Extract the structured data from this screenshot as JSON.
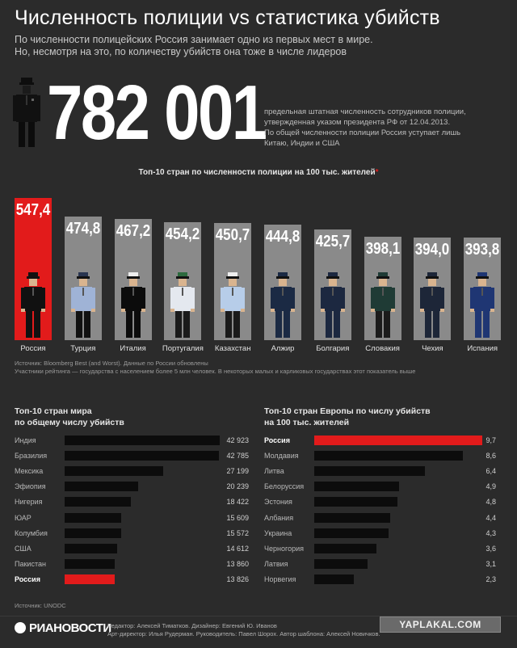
{
  "header": {
    "title": "Численность полиции vs статистика убийств",
    "subtitle_line1": "По численности полицейских Россия занимает одно из первых мест в мире.",
    "subtitle_line2": "Но, несмотря на это, по количеству убийств она тоже в числе лидеров"
  },
  "headline": {
    "number": "782 001",
    "desc_line1": "предельная штатная численность сотрудников полиции,",
    "desc_line2": "утвержденная указом президента РФ от 12.04.2013.",
    "desc_line3": "По общей численности полиции Россия уступает лишь",
    "desc_line4": "Китаю, Индии и США"
  },
  "colors": {
    "highlight": "#e21b1b",
    "bar_gray": "#8a8a8a",
    "bar_dark": "#0c0c0c",
    "background": "#2b2b2b"
  },
  "chart_data": [
    {
      "type": "bar",
      "title": "Топ-10 стран по численности полиции на 100 тыс. жителей",
      "title_mark": "*",
      "categories": [
        "Россия",
        "Турция",
        "Италия",
        "Португалия",
        "Казахстан",
        "Алжир",
        "Болгария",
        "Словакия",
        "Чехия",
        "Испания"
      ],
      "values": [
        547.4,
        474.8,
        467.2,
        454.2,
        450.7,
        444.8,
        425.7,
        398.1,
        394.0,
        393.8
      ],
      "value_labels": [
        "547,4",
        "474,8",
        "467,2",
        "454,2",
        "450,7",
        "444,8",
        "425,7",
        "398,1",
        "394,0",
        "393,8"
      ],
      "highlight": "Россия",
      "icon": "police-officer-icon"
    },
    {
      "type": "bar",
      "orientation": "horizontal",
      "title_line1": "Топ-10 стран мира",
      "title_line2": "по общему числу убийств",
      "categories": [
        "Индия",
        "Бразилия",
        "Мексика",
        "Эфиопия",
        "Нигерия",
        "ЮАР",
        "Колумбия",
        "США",
        "Пакистан",
        "Россия"
      ],
      "values": [
        42923,
        42785,
        27199,
        20239,
        18422,
        15609,
        15572,
        14612,
        13860,
        13826
      ],
      "value_labels": [
        "42 923",
        "42 785",
        "27 199",
        "20 239",
        "18 422",
        "15 609",
        "15 572",
        "14 612",
        "13 860",
        "13 826"
      ],
      "highlight": "Россия"
    },
    {
      "type": "bar",
      "orientation": "horizontal",
      "title_line1": "Топ-10 стран Европы по числу убийств",
      "title_line2": "на 100 тыс. жителей",
      "categories": [
        "Россия",
        "Молдавия",
        "Литва",
        "Белоруссия",
        "Эстония",
        "Албания",
        "Украина",
        "Черногория",
        "Латвия",
        "Норвегия"
      ],
      "values": [
        9.7,
        8.6,
        6.4,
        4.9,
        4.8,
        4.4,
        4.3,
        3.6,
        3.1,
        2.3
      ],
      "value_labels": [
        "9,7",
        "8,6",
        "6,4",
        "4,9",
        "4,8",
        "4,4",
        "4,3",
        "3,6",
        "3,1",
        "2,3"
      ],
      "highlight": "Россия"
    }
  ],
  "notes": {
    "source1": "Источник: Bloomberg Best (and Worst). Данные по России обновлены",
    "asterisk_note": "Участники рейтинга — государства с населением более 5 млн человек. В некоторых малых и карликовых государствах этот показатель выше",
    "source2": "Источник: UNODC"
  },
  "footer": {
    "logo": "РИАНОВОСТИ",
    "credit_line1": "Редактор: Алексей Тиматков. Дизайнер: Евгений Ю. Иванов",
    "credit_line2": "Арт-директор: Илья Рудерман. Руководитель: Павел Шорох. Автор шаблона: Алексей Новичков.",
    "watermark": "YAPLAKAL.COM"
  }
}
